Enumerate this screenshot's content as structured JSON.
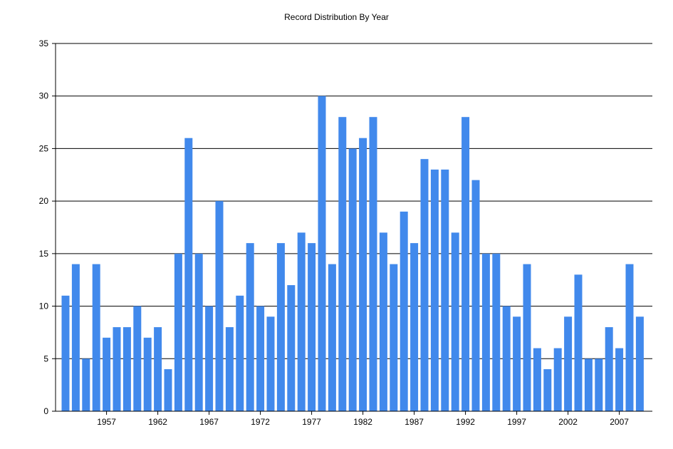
{
  "chart_data": {
    "type": "bar",
    "title": "Record Distribution By Year",
    "xlabel": "",
    "ylabel": "",
    "ylim": [
      0,
      35
    ],
    "yticks": [
      0,
      5,
      10,
      15,
      20,
      25,
      30,
      35
    ],
    "xticks": [
      1957,
      1962,
      1967,
      1972,
      1977,
      1982,
      1987,
      1992,
      1997,
      2002,
      2007
    ],
    "grid": true,
    "bar_color": "#4189EC",
    "categories": [
      1953,
      1954,
      1955,
      1956,
      1957,
      1958,
      1959,
      1960,
      1961,
      1962,
      1963,
      1964,
      1965,
      1966,
      1967,
      1968,
      1969,
      1970,
      1971,
      1972,
      1973,
      1974,
      1975,
      1976,
      1977,
      1978,
      1979,
      1980,
      1981,
      1982,
      1983,
      1984,
      1985,
      1986,
      1987,
      1988,
      1989,
      1990,
      1991,
      1992,
      1993,
      1994,
      1995,
      1996,
      1997,
      1998,
      1999,
      2000,
      2001,
      2002,
      2003,
      2004,
      2005,
      2006,
      2007,
      2008,
      2009
    ],
    "values": [
      11,
      14,
      5,
      14,
      7,
      8,
      8,
      10,
      7,
      8,
      4,
      15,
      26,
      15,
      10,
      20,
      8,
      11,
      16,
      10,
      9,
      16,
      12,
      17,
      16,
      30,
      14,
      28,
      25,
      26,
      28,
      17,
      14,
      19,
      16,
      24,
      23,
      23,
      17,
      28,
      22,
      15,
      15,
      10,
      9,
      14,
      6,
      4,
      6,
      9,
      13,
      5,
      5,
      8,
      6,
      14,
      9
    ]
  }
}
